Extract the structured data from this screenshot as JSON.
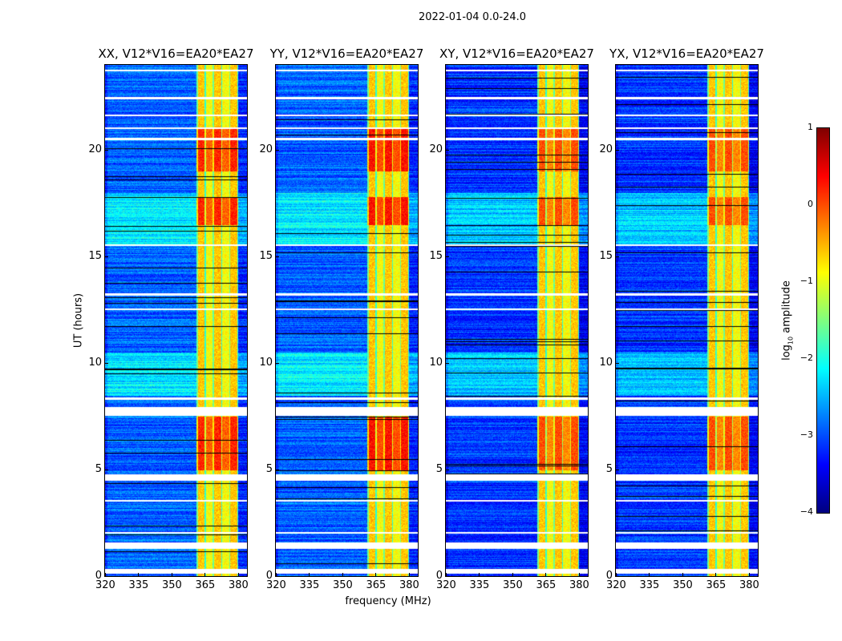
{
  "chart_data": {
    "type": "heatmap",
    "title": "2022-01-04 0.0-24.0",
    "xlabel": "frequency (MHz)",
    "ylabel": "UT (hours)",
    "xlim": [
      320,
      384
    ],
    "ylim": [
      0,
      24
    ],
    "xticks": [
      "320",
      "335",
      "350",
      "365",
      "380"
    ],
    "xtick_values": [
      320,
      335,
      350,
      365,
      380
    ],
    "yticks": [
      "0",
      "5",
      "10",
      "15",
      "20"
    ],
    "ytick_values": [
      0,
      5,
      10,
      15,
      20
    ],
    "panels": [
      {
        "title": "XX, V12*V16=EA20*EA27",
        "rfi_peak": 0.3,
        "background": -2.9
      },
      {
        "title": "YY, V12*V16=EA20*EA27",
        "rfi_peak": 0.4,
        "background": -2.9
      },
      {
        "title": "XY, V12*V16=EA20*EA27",
        "rfi_peak": 0.1,
        "background": -3.1
      },
      {
        "title": "YX, V12*V16=EA20*EA27",
        "rfi_peak": 0.1,
        "background": -3.1
      }
    ],
    "rfi_band_mhz": [
      361,
      380
    ],
    "flagged_hours": [
      [
        0.15,
        0.35
      ],
      [
        1.3,
        1.6
      ],
      [
        2.0,
        2.1
      ],
      [
        3.5,
        3.6
      ],
      [
        4.5,
        4.8
      ],
      [
        7.55,
        7.95
      ],
      [
        8.3,
        8.4
      ],
      [
        12.5,
        12.6
      ],
      [
        13.2,
        13.3
      ],
      [
        15.5,
        15.6
      ],
      [
        20.5,
        20.6
      ],
      [
        21.0,
        21.1
      ],
      [
        21.6,
        21.7
      ],
      [
        22.4,
        22.5
      ],
      [
        23.7,
        23.8
      ]
    ],
    "colorbar": {
      "label_prefix": "log",
      "label_sub": "10",
      "label_suffix": " amplitude",
      "range": [
        -4,
        1
      ],
      "ticks": [
        "1",
        "0",
        "−1",
        "−2",
        "−3",
        "−4"
      ],
      "tick_values": [
        1,
        0,
        -1,
        -2,
        -3,
        -4
      ],
      "colormap": "jet"
    }
  }
}
